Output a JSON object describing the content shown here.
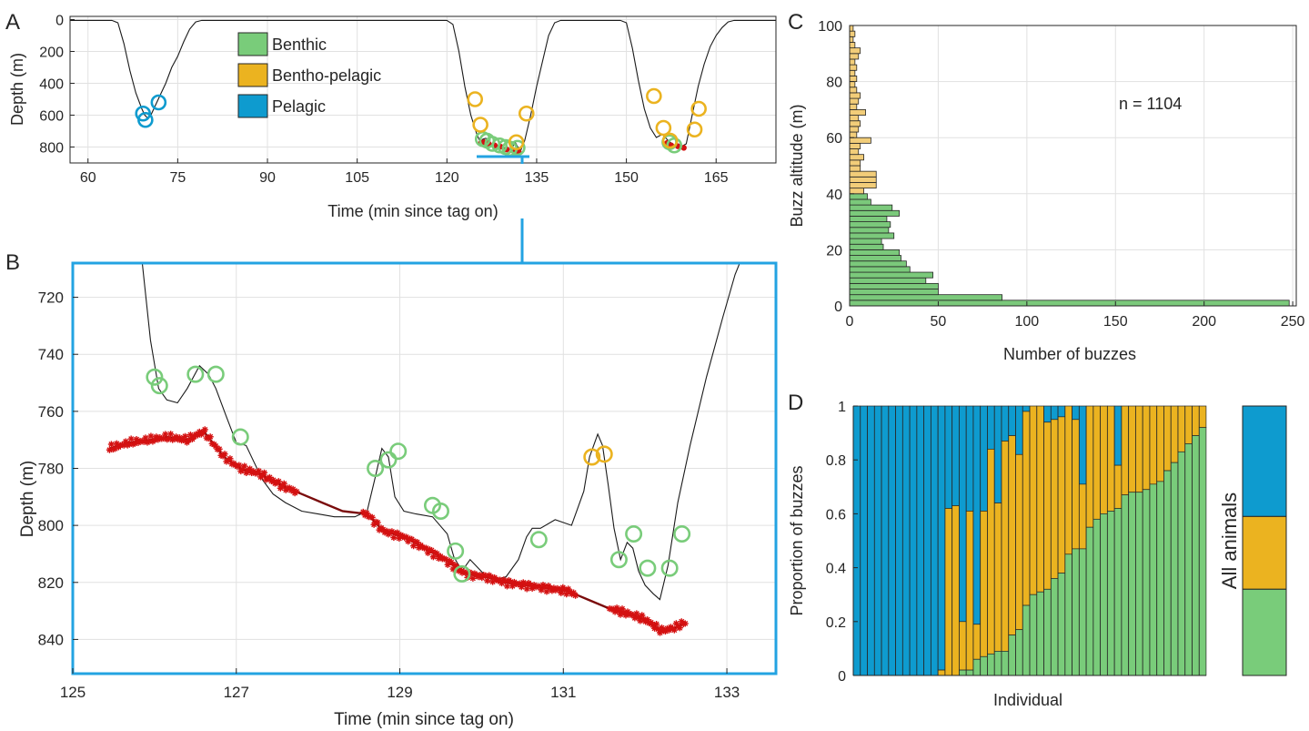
{
  "colors": {
    "benthic": "#79cc7a",
    "bentho_pelagic": "#ebb320",
    "pelagic": "#0e9bcf",
    "bottom": "#d41111",
    "bottom_line": "#7a0c0c",
    "depth_line": "#1a1a1a",
    "altitude_green": "#7bc97b",
    "altitude_yellow": "#f2cd79",
    "zoom_box": "#23a3e2"
  },
  "chart_data": [
    {
      "panel": "A",
      "type": "line",
      "xlabel": "Time (min since tag on)",
      "ylabel": "Depth (m)",
      "xlim": [
        57,
        175
      ],
      "ylim": [
        900,
        -20
      ],
      "y_reversed": true,
      "xticks": [
        60,
        75,
        90,
        105,
        120,
        135,
        150,
        165
      ],
      "yticks": [
        0,
        200,
        400,
        600,
        800
      ],
      "grid": true,
      "legend": {
        "placement": "top-center",
        "entries": [
          "Benthic",
          "Bentho-pelagic",
          "Pelagic"
        ]
      },
      "depth_profile": [
        [
          57,
          5
        ],
        [
          64,
          5
        ],
        [
          65,
          20
        ],
        [
          66,
          150
        ],
        [
          67,
          320
        ],
        [
          68,
          460
        ],
        [
          69,
          560
        ],
        [
          69.5,
          600
        ],
        [
          70,
          620
        ],
        [
          70.5,
          600
        ],
        [
          71,
          560
        ],
        [
          72,
          480
        ],
        [
          73,
          400
        ],
        [
          74,
          300
        ],
        [
          75,
          230
        ],
        [
          76,
          140
        ],
        [
          77,
          60
        ],
        [
          78,
          15
        ],
        [
          79,
          5
        ],
        [
          120,
          5
        ],
        [
          121,
          30
        ],
        [
          122,
          200
        ],
        [
          123,
          420
        ],
        [
          124,
          600
        ],
        [
          125,
          720
        ],
        [
          125.6,
          770
        ],
        [
          126,
          750
        ],
        [
          126.5,
          745
        ],
        [
          127,
          770
        ],
        [
          128,
          790
        ],
        [
          129,
          790
        ],
        [
          129.3,
          795
        ],
        [
          129.7,
          812
        ],
        [
          130,
          815
        ],
        [
          130.5,
          815
        ],
        [
          131,
          800
        ],
        [
          131.4,
          770
        ],
        [
          132,
          810
        ],
        [
          132.3,
          825
        ],
        [
          133,
          760
        ],
        [
          134,
          600
        ],
        [
          135,
          420
        ],
        [
          136,
          260
        ],
        [
          137,
          100
        ],
        [
          138,
          20
        ],
        [
          139,
          5
        ],
        [
          149,
          5
        ],
        [
          150,
          20
        ],
        [
          151,
          180
        ],
        [
          152,
          380
        ],
        [
          153,
          560
        ],
        [
          154,
          680
        ],
        [
          155,
          740
        ],
        [
          156,
          720
        ],
        [
          157,
          760
        ],
        [
          158,
          790
        ],
        [
          159,
          800
        ],
        [
          160,
          780
        ],
        [
          161,
          600
        ],
        [
          162,
          420
        ],
        [
          163,
          280
        ],
        [
          164,
          170
        ],
        [
          165,
          100
        ],
        [
          166,
          50
        ],
        [
          167,
          15
        ],
        [
          168,
          5
        ],
        [
          175,
          5
        ]
      ],
      "buzzes": {
        "pelagic": [
          [
            69.2,
            590
          ],
          [
            69.6,
            630
          ],
          [
            71.8,
            520
          ]
        ],
        "bentho_pelagic": [
          [
            124.7,
            500
          ],
          [
            125.6,
            660
          ],
          [
            131.6,
            770
          ],
          [
            133.3,
            590
          ],
          [
            154.6,
            480
          ],
          [
            156.2,
            680
          ],
          [
            157.3,
            760
          ],
          [
            161.4,
            690
          ],
          [
            162.1,
            560
          ]
        ],
        "benthic": [
          [
            126,
            750
          ],
          [
            126.7,
            760
          ],
          [
            127.6,
            780
          ],
          [
            128.8,
            790
          ],
          [
            129.8,
            800
          ],
          [
            130.5,
            810
          ],
          [
            131.8,
            805
          ],
          [
            157.2,
            770
          ],
          [
            158,
            790
          ]
        ]
      },
      "bottom_estimates": [
        [
          125.7,
          773
        ],
        [
          126.2,
          770
        ],
        [
          127,
          780
        ],
        [
          128,
          790
        ],
        [
          129,
          798
        ],
        [
          130,
          815
        ],
        [
          131,
          822
        ],
        [
          132,
          830
        ],
        [
          156.8,
          775
        ],
        [
          157.5,
          790
        ],
        [
          158.6,
          795
        ],
        [
          159.6,
          805
        ]
      ]
    },
    {
      "panel": "B",
      "type": "line",
      "xlabel": "Time (min since tag on)",
      "ylabel": "Depth (m)",
      "xlim": [
        125,
        133.6
      ],
      "ylim": [
        852,
        708
      ],
      "y_reversed": true,
      "xticks": [
        125,
        127,
        129,
        131,
        133
      ],
      "yticks": [
        720,
        740,
        760,
        780,
        800,
        820,
        840
      ],
      "grid": true,
      "depth_profile": [
        [
          125.85,
          708
        ],
        [
          125.95,
          735
        ],
        [
          126.05,
          752
        ],
        [
          126.15,
          756
        ],
        [
          126.28,
          757
        ],
        [
          126.4,
          752
        ],
        [
          126.55,
          744
        ],
        [
          126.66,
          747
        ],
        [
          126.75,
          752
        ],
        [
          126.88,
          762
        ],
        [
          127.0,
          771
        ],
        [
          127.12,
          772
        ],
        [
          127.22,
          778
        ],
        [
          127.32,
          784
        ],
        [
          127.45,
          789
        ],
        [
          127.6,
          792
        ],
        [
          127.8,
          795
        ],
        [
          128.0,
          796
        ],
        [
          128.2,
          797
        ],
        [
          128.45,
          797
        ],
        [
          128.6,
          795
        ],
        [
          128.7,
          783
        ],
        [
          128.78,
          773
        ],
        [
          128.86,
          776
        ],
        [
          128.94,
          790
        ],
        [
          129.05,
          795
        ],
        [
          129.2,
          796
        ],
        [
          129.4,
          797
        ],
        [
          129.58,
          803
        ],
        [
          129.66,
          811
        ],
        [
          129.76,
          816
        ],
        [
          129.86,
          812
        ],
        [
          129.96,
          815
        ],
        [
          130.06,
          818
        ],
        [
          130.18,
          819
        ],
        [
          130.3,
          818
        ],
        [
          130.45,
          812
        ],
        [
          130.55,
          804
        ],
        [
          130.62,
          801
        ],
        [
          130.72,
          801
        ],
        [
          130.9,
          798
        ],
        [
          131.1,
          800
        ],
        [
          131.25,
          788
        ],
        [
          131.32,
          776
        ],
        [
          131.42,
          768
        ],
        [
          131.48,
          772
        ],
        [
          131.55,
          786
        ],
        [
          131.62,
          801
        ],
        [
          131.7,
          812
        ],
        [
          131.78,
          806
        ],
        [
          131.85,
          808
        ],
        [
          131.92,
          816
        ],
        [
          132.0,
          821
        ],
        [
          132.1,
          824
        ],
        [
          132.18,
          826
        ],
        [
          132.28,
          814
        ],
        [
          132.4,
          792
        ],
        [
          132.55,
          772
        ],
        [
          132.75,
          748
        ],
        [
          132.95,
          727
        ],
        [
          133.1,
          712
        ],
        [
          133.2,
          705
        ]
      ],
      "bottom_line": [
        [
          125.45,
          773
        ],
        [
          125.7,
          771
        ],
        [
          125.95,
          770
        ],
        [
          126.15,
          769
        ],
        [
          126.4,
          770
        ],
        [
          126.6,
          767
        ],
        [
          126.85,
          776
        ],
        [
          127.05,
          780
        ],
        [
          127.3,
          782
        ],
        [
          127.55,
          786
        ],
        [
          127.8,
          789
        ],
        [
          128.05,
          792
        ],
        [
          128.3,
          795
        ],
        [
          128.6,
          796
        ],
        [
          128.8,
          802
        ],
        [
          129.05,
          804
        ],
        [
          129.3,
          808
        ],
        [
          129.55,
          812
        ],
        [
          129.8,
          817
        ],
        [
          130.05,
          818
        ],
        [
          130.3,
          820
        ],
        [
          130.55,
          821
        ],
        [
          130.8,
          822
        ],
        [
          131.05,
          823
        ],
        [
          131.3,
          826
        ],
        [
          131.55,
          829
        ],
        [
          131.8,
          831
        ],
        [
          132.0,
          833
        ],
        [
          132.2,
          837
        ],
        [
          132.35,
          836
        ],
        [
          132.5,
          834
        ]
      ],
      "buzzes": {
        "benthic": [
          [
            126.0,
            748
          ],
          [
            126.06,
            751
          ],
          [
            126.5,
            747
          ],
          [
            126.75,
            747
          ],
          [
            127.05,
            769
          ],
          [
            128.7,
            780
          ],
          [
            128.86,
            777
          ],
          [
            128.98,
            774
          ],
          [
            129.4,
            793
          ],
          [
            129.5,
            795
          ],
          [
            129.68,
            809
          ],
          [
            129.76,
            817
          ],
          [
            130.7,
            805
          ],
          [
            131.68,
            812
          ],
          [
            131.86,
            803
          ],
          [
            132.03,
            815
          ],
          [
            132.3,
            815
          ],
          [
            132.45,
            803
          ]
        ],
        "bentho_pelagic": [
          [
            131.35,
            776
          ],
          [
            131.5,
            775
          ]
        ]
      }
    },
    {
      "panel": "C",
      "type": "bar",
      "orientation": "horizontal",
      "xlabel": "Number of buzzes",
      "ylabel": "Buzz altitude (m)",
      "xlim": [
        0,
        252
      ],
      "ylim": [
        0,
        100
      ],
      "xticks": [
        0,
        50,
        100,
        150,
        200,
        250
      ],
      "yticks": [
        0,
        20,
        40,
        60,
        80,
        100
      ],
      "grid": true,
      "annotation": "n = 1104",
      "bin_width": 2,
      "benthic_below_altitude": 40,
      "counts": [
        248,
        86,
        50,
        50,
        43,
        47,
        34,
        32,
        29,
        28,
        19,
        18,
        25,
        22,
        23,
        21,
        28,
        24,
        12,
        10,
        8,
        15,
        15,
        15,
        6,
        6,
        8,
        5,
        6,
        12,
        4,
        5,
        6,
        5,
        9,
        4,
        5,
        6,
        4,
        3,
        4,
        3,
        4,
        3,
        5,
        6,
        3,
        2,
        3,
        2
      ]
    },
    {
      "panel": "D",
      "type": "bar",
      "stacked": true,
      "xlabel": "Individual",
      "ylabel": "Proportion of buzzes",
      "ylim": [
        0,
        1
      ],
      "yticks": [
        0,
        0.2,
        0.4,
        0.6,
        0.8,
        1
      ],
      "series_order": [
        "benthic",
        "bentho_pelagic",
        "pelagic"
      ],
      "individuals": [
        [
          0,
          0
        ],
        [
          0,
          0
        ],
        [
          0,
          0
        ],
        [
          0,
          0
        ],
        [
          0,
          0
        ],
        [
          0,
          0
        ],
        [
          0,
          0
        ],
        [
          0,
          0
        ],
        [
          0,
          0
        ],
        [
          0,
          0
        ],
        [
          0,
          0
        ],
        [
          0,
          0
        ],
        [
          0,
          0.02
        ],
        [
          0,
          0.62
        ],
        [
          0,
          0.63
        ],
        [
          0.02,
          0.2
        ],
        [
          0.02,
          0.61
        ],
        [
          0.06,
          0.19
        ],
        [
          0.07,
          0.61
        ],
        [
          0.08,
          0.84
        ],
        [
          0.09,
          0.64
        ],
        [
          0.09,
          0.87
        ],
        [
          0.15,
          0.89
        ],
        [
          0.17,
          0.82
        ],
        [
          0.26,
          0.98
        ],
        [
          0.3,
          1.0
        ],
        [
          0.31,
          1.0
        ],
        [
          0.32,
          0.94
        ],
        [
          0.36,
          0.95
        ],
        [
          0.38,
          0.96
        ],
        [
          0.45,
          1.0
        ],
        [
          0.47,
          0.95
        ],
        [
          0.47,
          0.71
        ],
        [
          0.55,
          1.0
        ],
        [
          0.58,
          1.0
        ],
        [
          0.6,
          1.0
        ],
        [
          0.61,
          1.0
        ],
        [
          0.62,
          0.78
        ],
        [
          0.67,
          1.0
        ],
        [
          0.68,
          1.0
        ],
        [
          0.68,
          1.0
        ],
        [
          0.69,
          1.0
        ],
        [
          0.71,
          1.0
        ],
        [
          0.72,
          1.0
        ],
        [
          0.76,
          1.0
        ],
        [
          0.79,
          1.0
        ],
        [
          0.83,
          1.0
        ],
        [
          0.86,
          1.0
        ],
        [
          0.89,
          1.0
        ],
        [
          0.92,
          1.0
        ]
      ],
      "all_animals": {
        "label": "All animals",
        "benthic": 0.32,
        "bentho_pelagic": 0.59
      }
    }
  ],
  "panel_labels": [
    "A",
    "B",
    "C",
    "D"
  ]
}
